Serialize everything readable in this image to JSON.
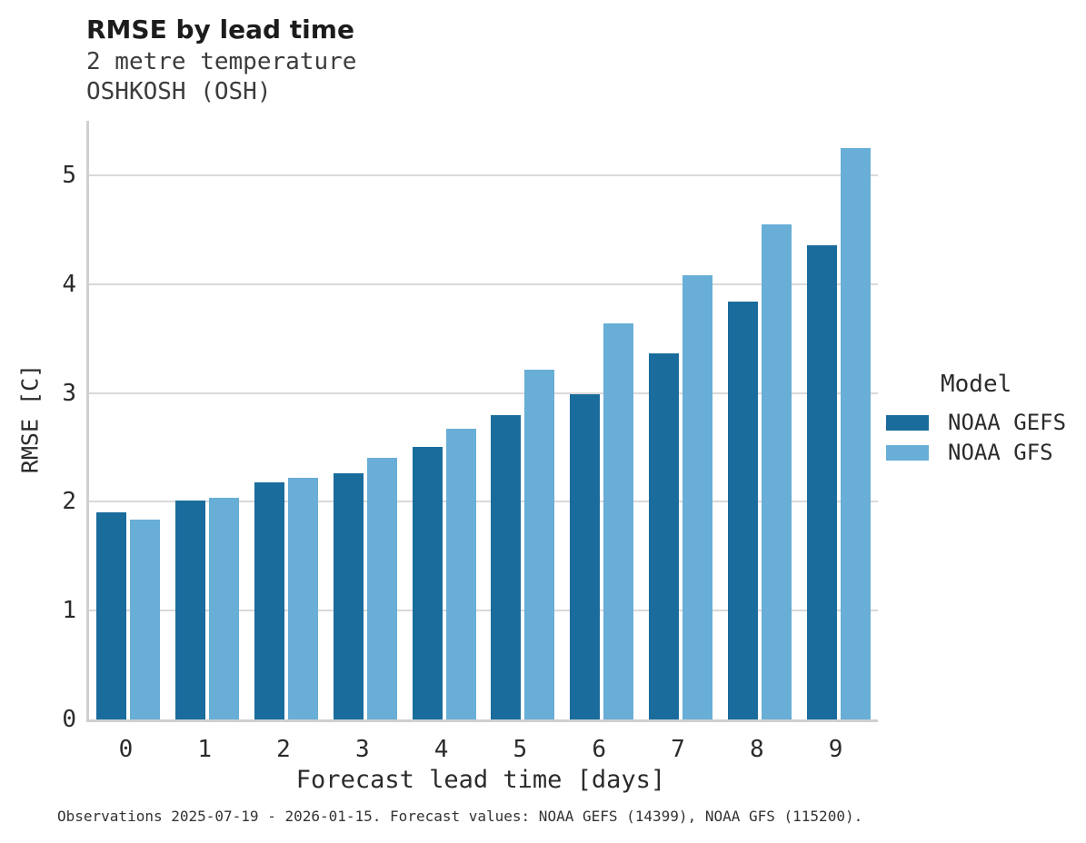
{
  "header": {
    "title": "RMSE by lead time",
    "subtitle_lines": [
      "2 metre temperature",
      "OSHKOSH (OSH)"
    ]
  },
  "chart_data": {
    "type": "bar",
    "title": "RMSE by lead time",
    "subtitle": "2 metre temperature, OSHKOSH (OSH)",
    "categories": [
      "0",
      "1",
      "2",
      "3",
      "4",
      "5",
      "6",
      "7",
      "8",
      "9"
    ],
    "series": [
      {
        "name": "NOAA GEFS",
        "color": "#1A6C9C",
        "values": [
          1.9,
          2.01,
          2.18,
          2.26,
          2.5,
          2.8,
          2.99,
          3.36,
          3.84,
          4.36
        ]
      },
      {
        "name": "NOAA GFS",
        "color": "#68AED6",
        "values": [
          1.84,
          2.04,
          2.22,
          2.4,
          2.67,
          3.21,
          3.64,
          4.08,
          4.55,
          5.25
        ]
      }
    ],
    "xlabel": "Forecast lead time [days]",
    "ylabel": "RMSE [C]",
    "ylim": [
      0,
      5.5
    ],
    "yticks": [
      0,
      1,
      2,
      3,
      4,
      5
    ],
    "grid": "horizontal",
    "legend_title": "Model",
    "legend_position": "right",
    "gridline_color": "#d9d9d9",
    "spine_color": "#cfcfcf"
  },
  "caption": "Observations 2025-07-19 - 2026-01-15. Forecast values: NOAA GEFS (14399), NOAA GFS (115200)."
}
